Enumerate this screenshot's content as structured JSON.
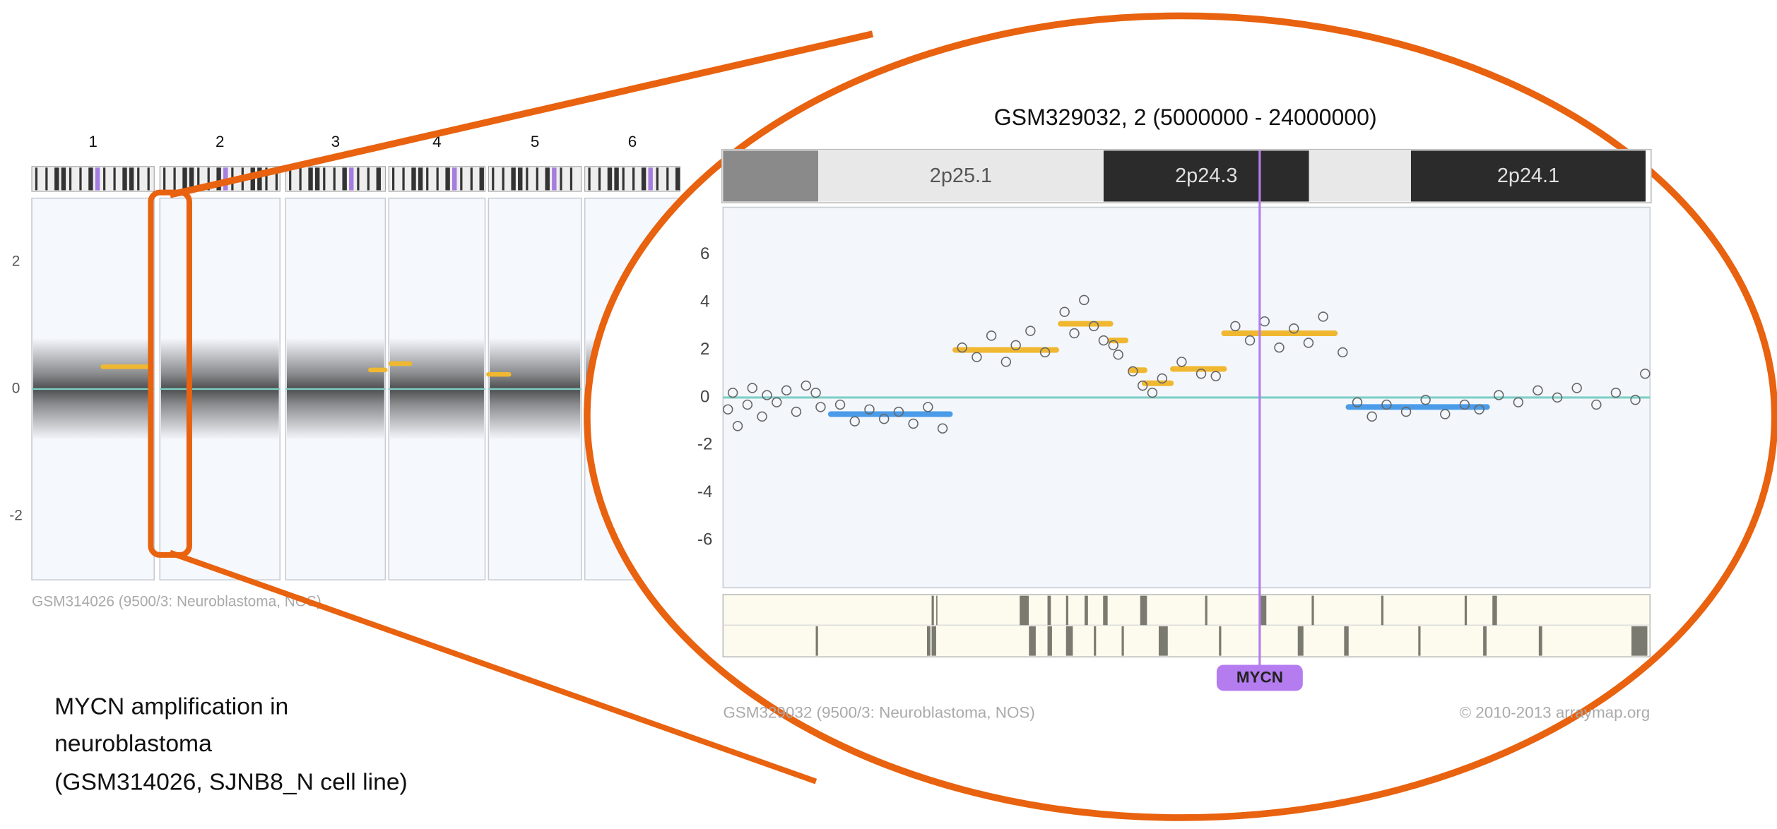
{
  "chart_data": [
    {
      "type": "strip",
      "categories": [
        "1",
        "2",
        "3",
        "4",
        "5",
        "6"
      ],
      "ylim": [
        -3,
        3
      ],
      "yticks": [
        2,
        0,
        -2
      ],
      "baseline_color": "#7fcfc5",
      "segments": [
        {
          "chromosome": "1",
          "value": 0.35,
          "color": "#f0b830"
        },
        {
          "chromosome": "3",
          "value": 0.3,
          "color": "#f0b830"
        },
        {
          "chromosome": "4",
          "value": 0.4,
          "color": "#f0b830"
        },
        {
          "chromosome": "5",
          "value": 0.23,
          "color": "#f0b830"
        }
      ],
      "footer": "GSM314026 (9500/3: Neuroblastoma, NOS)"
    },
    {
      "type": "scatter",
      "title": "GSM329032, 2 (5000000 - 24000000)",
      "xlim": [
        5000000,
        24000000
      ],
      "ylim": [
        -8,
        8
      ],
      "yticks": [
        6,
        4,
        2,
        0,
        -2,
        -4,
        -6
      ],
      "baseline_color": "#7fcfc5",
      "point_color": "#666666",
      "bands": [
        {
          "start": 5000000,
          "end": 6950000,
          "label": null,
          "color": "#8a8a8a"
        },
        {
          "start": 6950000,
          "end": 12800000,
          "label": "2p25.1",
          "color": "#e8e8e8"
        },
        {
          "start": 12800000,
          "end": 17010000,
          "label": "2p24.3",
          "color": "#2b2b2b"
        },
        {
          "start": 17010000,
          "end": 19100000,
          "label": null,
          "color": "#e8e8e8"
        },
        {
          "start": 19100000,
          "end": 23910000,
          "label": "2p24.1",
          "color": "#2b2b2b"
        }
      ],
      "x": [
        5100000,
        5200000,
        5300000,
        5500000,
        5600000,
        5800000,
        5900000,
        6100000,
        6300000,
        6500000,
        6700000,
        6900000,
        7000000,
        7400000,
        7700000,
        8000000,
        8300000,
        8600000,
        8900000,
        9200000,
        9500000,
        9900000,
        10200000,
        10500000,
        10800000,
        11000000,
        11300000,
        11600000,
        12000000,
        12200000,
        12400000,
        12600000,
        12800000,
        13000000,
        13100000,
        13400000,
        13600000,
        13800000,
        14000000,
        14400000,
        14800000,
        15100000,
        15500000,
        15800000,
        16100000,
        16400000,
        16700000,
        17000000,
        17300000,
        17700000,
        18000000,
        18300000,
        18600000,
        19000000,
        19400000,
        19800000,
        20200000,
        20500000,
        20900000,
        21300000,
        21700000,
        22100000,
        22500000,
        22900000,
        23300000,
        23700000,
        23900000
      ],
      "values": [
        -0.5,
        0.2,
        -1.2,
        -0.3,
        0.4,
        -0.8,
        0.1,
        -0.2,
        0.3,
        -0.6,
        0.5,
        0.2,
        -0.4,
        -0.3,
        -1.0,
        -0.5,
        -0.9,
        -0.6,
        -1.1,
        -0.4,
        -1.3,
        2.1,
        1.7,
        2.6,
        1.5,
        2.2,
        2.8,
        1.9,
        3.6,
        2.7,
        4.1,
        3.0,
        2.4,
        2.2,
        1.8,
        1.1,
        0.5,
        0.2,
        0.8,
        1.5,
        1.0,
        0.9,
        3.0,
        2.4,
        3.2,
        2.1,
        2.9,
        2.3,
        3.4,
        1.9,
        -0.2,
        -0.8,
        -0.3,
        -0.6,
        -0.1,
        -0.7,
        -0.3,
        -0.5,
        0.1,
        -0.2,
        0.3,
        0.0,
        0.4,
        -0.3,
        0.2,
        -0.1,
        1.0
      ],
      "segments": [
        {
          "start": 7210000,
          "end": 9650000,
          "value": -0.7,
          "color": "#4a9be8"
        },
        {
          "start": 9760000,
          "end": 11830000,
          "value": 2.0,
          "color": "#f0b830"
        },
        {
          "start": 11920000,
          "end": 12940000,
          "value": 3.1,
          "color": "#f0b830"
        },
        {
          "start": 12940000,
          "end": 13250000,
          "value": 2.4,
          "color": "#f0b830"
        },
        {
          "start": 13360000,
          "end": 13640000,
          "value": 1.15,
          "color": "#f0b830"
        },
        {
          "start": 13640000,
          "end": 14180000,
          "value": 0.6,
          "color": "#f0b830"
        },
        {
          "start": 14220000,
          "end": 15270000,
          "value": 1.2,
          "color": "#f0b830"
        },
        {
          "start": 15270000,
          "end": 17540000,
          "value": 2.7,
          "color": "#f0b830"
        },
        {
          "start": 17820000,
          "end": 20660000,
          "value": -0.4,
          "color": "#4a9be8"
        }
      ],
      "marker": {
        "label": "MYCN",
        "x": 16000000,
        "color": "#b57cf0"
      },
      "footer": "GSM329032 (9500/3: Neuroblastoma, NOS)",
      "credit": "© 2010-2013 arraymap.org"
    }
  ],
  "annotation": [
    "MYCN amplification in",
    "neuroblastoma",
    "(GSM314026,  SJNB8_N cell line)"
  ]
}
